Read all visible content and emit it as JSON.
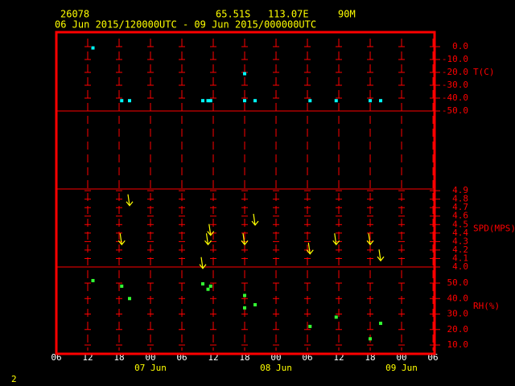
{
  "header": {
    "station": "26078",
    "lat": "65.51S",
    "lon": "113.07E",
    "elev": "90M",
    "period": "06 Jun 2015/120000UTC - 09 Jun 2015/000000UTC",
    "page": "2"
  },
  "chart_data": [
    {
      "type": "scatter",
      "y_label": "T(C)",
      "color": "#00ffff",
      "x": [
        13,
        18.5,
        20,
        34,
        35,
        35.5,
        42,
        42,
        44,
        54.5,
        59.5,
        66,
        68
      ],
      "values": [
        -1,
        -42,
        -42,
        -42,
        -42,
        -42,
        -21,
        -42,
        -42,
        -42,
        -42,
        -42,
        -42
      ],
      "ylim": [
        -50,
        11.25
      ],
      "yticks": [
        {
          "value": 0,
          "label": "0.0"
        },
        {
          "value": -10,
          "label": "-10.0"
        },
        {
          "value": -20,
          "label": "-20.0"
        },
        {
          "value": -30,
          "label": "-30.0"
        },
        {
          "value": -40,
          "label": "-40.0"
        },
        {
          "value": -50,
          "label": "-50.0"
        }
      ]
    },
    {
      "type": "wind",
      "y_label": "SPD(MPS)",
      "color": "#ffff00",
      "x": [
        18.5,
        20,
        34,
        35,
        35.5,
        42,
        44,
        54.5,
        59.5,
        66,
        68
      ],
      "values": [
        4.33,
        4.79,
        4.05,
        4.33,
        4.44,
        4.33,
        4.56,
        4.22,
        4.33,
        4.33,
        4.14
      ],
      "ylim": [
        4.0,
        4.92
      ],
      "yticks": [
        {
          "value": 4.0,
          "label": "4.0"
        },
        {
          "value": 4.1,
          "label": "4.1"
        },
        {
          "value": 4.2,
          "label": "4.2"
        },
        {
          "value": 4.3,
          "label": "4.3"
        },
        {
          "value": 4.4,
          "label": "4.4"
        },
        {
          "value": 4.5,
          "label": "4.5"
        },
        {
          "value": 4.6,
          "label": "4.6"
        },
        {
          "value": 4.7,
          "label": "4.7"
        },
        {
          "value": 4.8,
          "label": "4.8"
        },
        {
          "value": 4.9,
          "label": "4.9"
        }
      ]
    },
    {
      "type": "scatter",
      "y_label": "RH(%)",
      "color": "#33ff33",
      "x": [
        13,
        18.5,
        20,
        34,
        35,
        35.5,
        42,
        42,
        44,
        54.5,
        59.5,
        66,
        68
      ],
      "values": [
        51.6,
        48,
        40,
        49.5,
        46,
        48,
        42,
        34,
        36,
        22,
        28,
        14,
        24
      ],
      "ylim": [
        4.3,
        60.4
      ],
      "yticks": [
        {
          "value": 10,
          "label": "10.0"
        },
        {
          "value": 20,
          "label": "20.0"
        },
        {
          "value": 30,
          "label": "30.0"
        },
        {
          "value": 40,
          "label": "40.0"
        },
        {
          "value": 50,
          "label": "50.0"
        }
      ],
      "xlim": [
        6,
        78.3
      ],
      "xticks": [
        {
          "value": 6,
          "label": "06"
        },
        12,
        18,
        {
          "value": 24,
          "label": "00"
        },
        {
          "value": 30,
          "label": "06"
        },
        {
          "value": 36,
          "label": "12"
        },
        {
          "value": 42,
          "label": "18"
        },
        {
          "value": 48,
          "label": "00"
        },
        {
          "value": 54,
          "label": "06"
        },
        {
          "value": 60,
          "label": "12"
        },
        {
          "value": 66,
          "label": "18"
        },
        {
          "value": 72,
          "label": "00"
        },
        {
          "value": 78,
          "label": "06"
        }
      ],
      "date_ticks": [
        {
          "value": 24,
          "label": "07 Jun"
        },
        {
          "value": 48,
          "label": "08 Jun"
        },
        {
          "value": 72,
          "label": "09 Jun"
        }
      ]
    }
  ]
}
